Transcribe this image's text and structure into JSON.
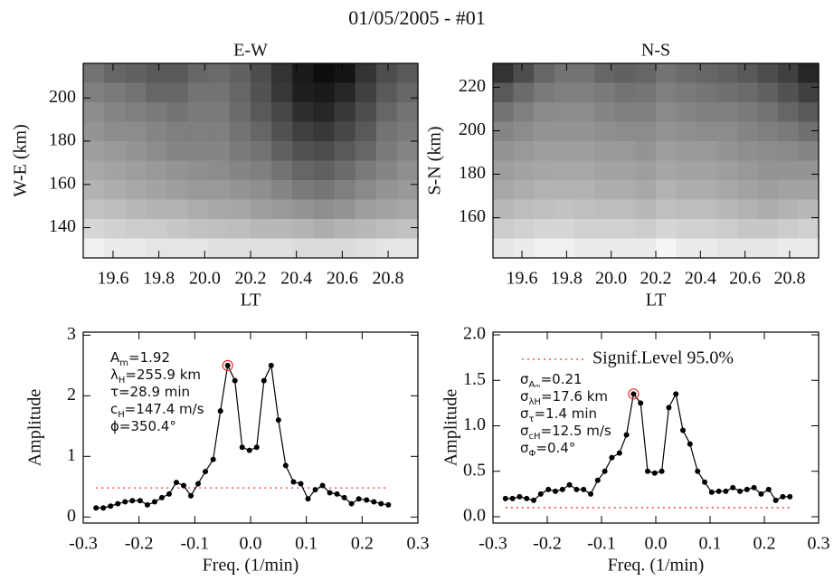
{
  "title": "01/05/2005 - #01",
  "chart_data": [
    {
      "type": "heatmap",
      "title": "E-W",
      "x_label": "LT",
      "y_label": "W-E (km)",
      "xlim": [
        19.47,
        20.93
      ],
      "ylim": [
        126,
        216
      ],
      "xticks": [
        19.6,
        19.8,
        {
          "value": 20,
          "label": "20.0"
        },
        20.2,
        20.4,
        20.6,
        20.8
      ],
      "yticks": [
        140,
        160,
        180,
        200
      ],
      "z": [
        [
          45,
          40,
          38,
          35,
          35,
          40,
          42,
          38,
          30,
          20,
          10,
          5,
          8,
          20,
          30,
          35
        ],
        [
          50,
          48,
          45,
          40,
          40,
          45,
          45,
          40,
          32,
          22,
          12,
          10,
          15,
          25,
          35,
          40
        ],
        [
          55,
          52,
          50,
          48,
          45,
          48,
          48,
          42,
          35,
          28,
          18,
          15,
          22,
          30,
          40,
          45
        ],
        [
          58,
          55,
          55,
          52,
          50,
          50,
          50,
          45,
          40,
          32,
          25,
          22,
          28,
          35,
          45,
          48
        ],
        [
          62,
          60,
          58,
          55,
          52,
          52,
          52,
          48,
          45,
          38,
          32,
          30,
          35,
          40,
          48,
          52
        ],
        [
          66,
          64,
          62,
          60,
          58,
          56,
          55,
          52,
          50,
          45,
          40,
          38,
          42,
          48,
          52,
          56
        ],
        [
          70,
          68,
          66,
          64,
          62,
          60,
          60,
          58,
          56,
          52,
          48,
          46,
          50,
          54,
          58,
          60
        ],
        [
          76,
          74,
          72,
          70,
          70,
          68,
          66,
          65,
          62,
          60,
          58,
          56,
          58,
          62,
          64,
          66
        ],
        [
          84,
          82,
          80,
          80,
          78,
          76,
          75,
          74,
          72,
          72,
          70,
          68,
          70,
          72,
          74,
          76
        ],
        [
          94,
          92,
          92,
          90,
          90,
          90,
          88,
          88,
          88,
          88,
          86,
          86,
          86,
          88,
          90,
          90
        ]
      ]
    },
    {
      "type": "heatmap",
      "title": "N-S",
      "x_label": "LT",
      "y_label": "S-N (km)",
      "xlim": [
        19.47,
        20.93
      ],
      "ylim": [
        141.5,
        231
      ],
      "xticks": [
        19.6,
        19.8,
        {
          "value": 20,
          "label": "20.0"
        },
        20.2,
        20.4,
        20.6,
        20.8
      ],
      "yticks": [
        160,
        180,
        200,
        220
      ],
      "z": [
        [
          20,
          30,
          40,
          45,
          45,
          40,
          38,
          40,
          45,
          42,
          40,
          38,
          35,
          30,
          25,
          15
        ],
        [
          35,
          42,
          48,
          50,
          50,
          48,
          45,
          46,
          50,
          48,
          46,
          44,
          42,
          38,
          32,
          25
        ],
        [
          45,
          50,
          54,
          55,
          55,
          52,
          50,
          50,
          54,
          52,
          50,
          50,
          48,
          45,
          40,
          35
        ],
        [
          52,
          55,
          58,
          58,
          58,
          56,
          55,
          55,
          58,
          56,
          55,
          55,
          52,
          50,
          48,
          44
        ],
        [
          58,
          60,
          62,
          62,
          62,
          60,
          60,
          58,
          62,
          60,
          60,
          58,
          56,
          55,
          54,
          52
        ],
        [
          62,
          64,
          65,
          66,
          66,
          64,
          64,
          62,
          65,
          64,
          64,
          62,
          60,
          58,
          58,
          58
        ],
        [
          66,
          68,
          70,
          70,
          70,
          68,
          68,
          66,
          70,
          68,
          68,
          66,
          64,
          62,
          64,
          64
        ],
        [
          72,
          74,
          75,
          76,
          75,
          74,
          74,
          72,
          75,
          74,
          74,
          72,
          70,
          68,
          70,
          72
        ],
        [
          80,
          82,
          84,
          84,
          82,
          82,
          82,
          80,
          84,
          82,
          82,
          80,
          78,
          78,
          80,
          82
        ],
        [
          90,
          92,
          94,
          94,
          92,
          92,
          92,
          92,
          96,
          92,
          92,
          90,
          90,
          90,
          92,
          92
        ]
      ]
    },
    {
      "type": "line",
      "x_label": "Freq. (1/min)",
      "y_label": "Amplitude",
      "xlim": [
        -0.3,
        0.3
      ],
      "ylim": [
        -0.1,
        3.05
      ],
      "xticks": [
        -0.3,
        -0.2,
        -0.1,
        {
          "value": 0,
          "label": "0.0"
        },
        0.1,
        0.2,
        0.3
      ],
      "yticks": [
        0,
        1,
        2,
        3
      ],
      "color": "#000000",
      "signif_color": "#e8302a",
      "signif_level": 0.48,
      "x": [
        -0.277,
        -0.264,
        -0.251,
        -0.238,
        -0.225,
        -0.212,
        -0.198,
        -0.185,
        -0.172,
        -0.159,
        -0.146,
        -0.133,
        -0.12,
        -0.107,
        -0.094,
        -0.081,
        -0.067,
        -0.054,
        -0.041,
        -0.028,
        -0.015,
        -0.002,
        0.011,
        0.024,
        0.037,
        0.05,
        0.063,
        0.077,
        0.09,
        0.103,
        0.116,
        0.129,
        0.142,
        0.155,
        0.168,
        0.181,
        0.194,
        0.208,
        0.221,
        0.234,
        0.247
      ],
      "values": [
        0.15,
        0.15,
        0.18,
        0.22,
        0.25,
        0.27,
        0.27,
        0.2,
        0.25,
        0.32,
        0.38,
        0.57,
        0.52,
        0.35,
        0.55,
        0.75,
        0.95,
        1.75,
        2.5,
        2.25,
        1.15,
        1.1,
        1.15,
        2.25,
        2.5,
        1.6,
        0.85,
        0.58,
        0.55,
        0.3,
        0.45,
        0.52,
        0.4,
        0.38,
        0.32,
        0.22,
        0.3,
        0.28,
        0.25,
        0.22,
        0.2
      ],
      "annotations": [
        {
          "symbol": "A",
          "subscript": "m",
          "text": "=1.92"
        },
        {
          "symbol": "λ",
          "subscript": "H",
          "text": "=255.9 km"
        },
        {
          "symbol": "τ",
          "subscript": "",
          "text": "=28.9 min"
        },
        {
          "symbol": "c",
          "subscript": "H",
          "text": "=147.4 m/s"
        },
        {
          "symbol": "ϕ",
          "subscript": "",
          "text": "=350.4°"
        }
      ]
    },
    {
      "type": "line",
      "x_label": "Freq. (1/min)",
      "y_label": "Amplitude",
      "xlim": [
        -0.3,
        0.3
      ],
      "ylim": [
        -0.07,
        2.03
      ],
      "xticks": [
        -0.3,
        -0.2,
        -0.1,
        {
          "value": 0,
          "label": "0.0"
        },
        0.1,
        0.2,
        0.3
      ],
      "yticks": [
        {
          "value": 0,
          "label": "0.0"
        },
        0.5,
        {
          "value": 1,
          "label": "1.0"
        },
        1.5,
        {
          "value": 2,
          "label": "2.0"
        }
      ],
      "color": "#000000",
      "signif_color": "#e8302a",
      "signif_level": 0.1,
      "legend_label": "Signif.Level 95.0%",
      "x": [
        -0.277,
        -0.264,
        -0.251,
        -0.238,
        -0.225,
        -0.212,
        -0.198,
        -0.185,
        -0.172,
        -0.159,
        -0.146,
        -0.133,
        -0.12,
        -0.107,
        -0.094,
        -0.081,
        -0.067,
        -0.054,
        -0.041,
        -0.028,
        -0.015,
        -0.002,
        0.011,
        0.024,
        0.037,
        0.05,
        0.063,
        0.077,
        0.09,
        0.103,
        0.116,
        0.129,
        0.142,
        0.155,
        0.168,
        0.181,
        0.194,
        0.208,
        0.221,
        0.234,
        0.247
      ],
      "values": [
        0.2,
        0.2,
        0.22,
        0.2,
        0.18,
        0.25,
        0.3,
        0.28,
        0.3,
        0.35,
        0.3,
        0.3,
        0.25,
        0.4,
        0.5,
        0.65,
        0.7,
        0.9,
        1.35,
        1.25,
        0.5,
        0.48,
        0.5,
        1.2,
        1.35,
        0.95,
        0.8,
        0.5,
        0.38,
        0.27,
        0.28,
        0.28,
        0.32,
        0.28,
        0.3,
        0.32,
        0.25,
        0.3,
        0.18,
        0.22,
        0.22
      ],
      "annotations": [
        {
          "symbol": "σ",
          "subscript": "Aₘ",
          "text": "=0.21"
        },
        {
          "symbol": "σ",
          "subscript": "λH",
          "text": "=17.6 km"
        },
        {
          "symbol": "σ",
          "subscript": "τ",
          "text": "=1.4 min"
        },
        {
          "symbol": "σ",
          "subscript": "cH",
          "text": "=12.5 m/s"
        },
        {
          "symbol": "σ",
          "subscript": "Φ",
          "text": "=0.4°"
        }
      ]
    }
  ]
}
